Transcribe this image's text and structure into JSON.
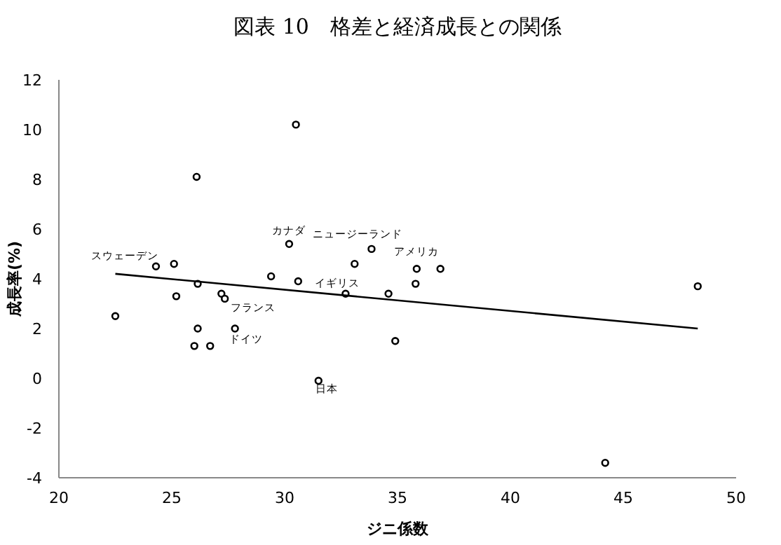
{
  "chart_data": {
    "type": "scatter",
    "title": "図表 10　格差と経済成長との関係",
    "xlabel": "ジニ係数",
    "ylabel": "成長率(%)",
    "xlim": [
      20,
      50
    ],
    "xticks": [
      20,
      25,
      30,
      35,
      40,
      45,
      50
    ],
    "ylim": [
      -4,
      12
    ],
    "yticks": [
      -4,
      -2,
      0,
      2,
      4,
      6,
      8,
      10,
      12
    ],
    "grid": false,
    "marker": "circle",
    "series": [
      {
        "color": "#000000",
        "x": [
          22.5,
          24.3,
          25.1,
          25.2,
          26.1,
          26.15,
          26.15,
          26.0,
          26.7,
          27.2,
          27.35,
          27.8,
          29.4,
          30.2,
          30.5,
          30.6,
          31.5,
          32.7,
          33.1,
          33.85,
          34.6,
          34.9,
          35.8,
          35.85,
          36.9,
          48.3,
          44.2
        ],
        "values": [
          2.5,
          4.5,
          4.6,
          3.3,
          8.1,
          3.8,
          2.0,
          1.3,
          1.3,
          3.4,
          3.2,
          2.0,
          4.1,
          5.4,
          10.2,
          3.9,
          -0.1,
          3.4,
          4.6,
          5.2,
          3.4,
          1.5,
          3.8,
          4.4,
          4.4,
          3.7,
          -3.4
        ]
      },
      {
        "type": "line",
        "color": "#000000",
        "marker": "none",
        "x": [
          22.5,
          48.3
        ],
        "values": [
          4.2,
          2.0
        ]
      }
    ],
    "annotations": [
      {
        "text": "スウェーデン",
        "x": 24.3,
        "y": 4.5
      },
      {
        "text": "カナダ",
        "x": 30.2,
        "y": 5.4
      },
      {
        "text": "ニュージーランド",
        "x": 33.85,
        "y": 5.2
      },
      {
        "text": "アメリカ",
        "x": 35.85,
        "y": 4.4
      },
      {
        "text": "イギリス",
        "x": 32.7,
        "y": 3.4
      },
      {
        "text": "フランス",
        "x": 27.35,
        "y": 3.2
      },
      {
        "text": "ドイツ",
        "x": 27.8,
        "y": 2.0
      },
      {
        "text": "日本",
        "x": 31.5,
        "y": -0.1
      }
    ]
  }
}
